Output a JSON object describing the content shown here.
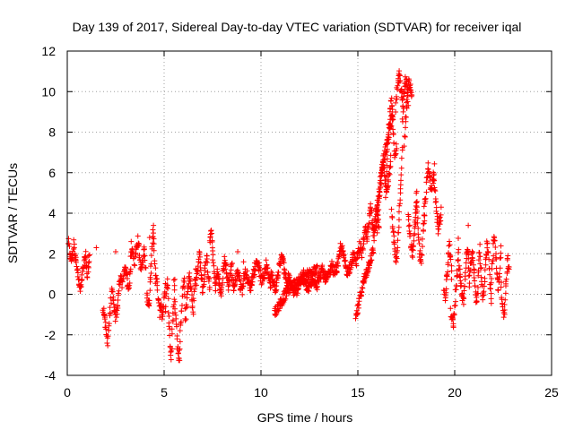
{
  "chart_data": {
    "type": "scatter",
    "title": "Day 139 of 2017, Sidereal Day-to-day VTEC variation (SDTVAR) for receiver iqal",
    "xlabel": "GPS time / hours",
    "ylabel": "SDTVAR / TECUs",
    "xlim": [
      0,
      25
    ],
    "ylim": [
      -4,
      12
    ],
    "xticks": [
      "0",
      "5",
      "10",
      "15",
      "20",
      "25"
    ],
    "yticks": [
      "-4",
      "-2",
      "0",
      "2",
      "4",
      "6",
      "8",
      "10",
      "12"
    ],
    "grid": true,
    "marker": "plus",
    "color": "#ff0000",
    "series": [
      {
        "name": "SDTVAR",
        "segments": [
          {
            "x0": 0.05,
            "x1": 0.45,
            "y": [
              2.6,
              2.2,
              1.8,
              1.7,
              2.0,
              2.5,
              2.1,
              1.6
            ]
          },
          {
            "x0": 0.45,
            "x1": 0.95,
            "y": [
              1.9,
              1.2,
              0.6,
              0.2,
              0.5,
              1.1,
              1.6,
              1.8
            ]
          },
          {
            "x0": 0.95,
            "x1": 1.15,
            "y": [
              1.9,
              1.3,
              0.8,
              1.5,
              2.0
            ]
          },
          {
            "x0": 1.85,
            "x1": 2.25,
            "y": [
              -0.6,
              -1.0,
              -1.5,
              -2.0,
              -2.3,
              -1.7,
              -1.0,
              -0.2
            ]
          },
          {
            "x0": 2.3,
            "x1": 2.85,
            "y": [
              0.2,
              -0.5,
              -1.2,
              -0.8,
              0.3,
              0.9,
              0.4
            ]
          },
          {
            "x0": 2.9,
            "x1": 3.45,
            "y": [
              0.8,
              1.4,
              0.9,
              0.3,
              0.6,
              1.9,
              2.4,
              1.5
            ]
          },
          {
            "x0": 3.5,
            "x1": 4.05,
            "y": [
              1.6,
              2.4,
              2.7,
              1.8,
              1.2,
              1.6,
              2.3,
              1.4
            ]
          },
          {
            "x0": 4.1,
            "x1": 4.55,
            "y": [
              0.2,
              -0.6,
              -0.3,
              0.9,
              2.0,
              3.3,
              2.2,
              0.7
            ]
          },
          {
            "x0": 4.55,
            "x1": 5.05,
            "y": [
              1.3,
              0.6,
              -0.2,
              -0.9,
              -0.4,
              -1.1,
              -0.6,
              0.3
            ]
          },
          {
            "x0": 5.05,
            "x1": 5.55,
            "y": [
              -0.6,
              0.2,
              0.6,
              -1.2,
              -2.3,
              -3.2,
              -1.7,
              -0.4,
              0.5
            ]
          },
          {
            "x0": 5.55,
            "x1": 6.1,
            "y": [
              -0.3,
              -1.3,
              -2.6,
              -3.5,
              -2.2,
              -1.0,
              0.2,
              0.8,
              -0.6
            ]
          },
          {
            "x0": 6.1,
            "x1": 6.65,
            "y": [
              -1.4,
              -0.3,
              0.7,
              1.0,
              0.1,
              -0.9,
              0.4,
              1.2
            ]
          },
          {
            "x0": 6.65,
            "x1": 7.35,
            "y": [
              0.5,
              1.4,
              2.0,
              1.0,
              0.2,
              0.9,
              1.8,
              1.1,
              0.3
            ]
          },
          {
            "x0": 7.35,
            "x1": 7.65,
            "y": [
              2.6,
              3.0,
              1.5,
              0.2
            ]
          },
          {
            "x0": 7.65,
            "x1": 8.5,
            "y": [
              0.4,
              1.1,
              0.6,
              -0.1,
              0.9,
              1.7,
              1.2,
              0.4,
              1.0,
              1.6
            ]
          },
          {
            "x0": 8.5,
            "x1": 9.45,
            "y": [
              0.9,
              0.3,
              0.8,
              1.2,
              0.5,
              0.2,
              0.9,
              1.1,
              0.6,
              0.4
            ]
          },
          {
            "x0": 9.45,
            "x1": 10.5,
            "y": [
              0.3,
              0.8,
              1.3,
              1.7,
              1.2,
              0.6,
              0.9,
              1.5,
              1.0,
              0.5
            ]
          },
          {
            "x0": 10.5,
            "x1": 11.45,
            "y": [
              1.1,
              0.6,
              0.2,
              0.8,
              1.6,
              1.9,
              1.2,
              0.6,
              1.0
            ]
          },
          {
            "x0": 10.7,
            "x1": 12.9,
            "y": [
              -0.9,
              -0.6,
              -0.2,
              0.2,
              0.4,
              0.5,
              0.7,
              0.8,
              1.0,
              1.1,
              1.2
            ]
          },
          {
            "x0": 11.45,
            "x1": 12.9,
            "y": [
              0.7,
              0.3,
              0.0,
              0.4,
              0.9,
              0.6,
              0.2,
              0.5,
              0.8,
              0.4
            ]
          },
          {
            "x0": 12.9,
            "x1": 13.9,
            "y": [
              0.6,
              0.9,
              1.2,
              0.9,
              0.7,
              1.0,
              1.4,
              1.1,
              1.3
            ]
          },
          {
            "x0": 13.9,
            "x1": 14.8,
            "y": [
              1.2,
              1.6,
              2.4,
              2.0,
              1.5,
              1.1,
              1.3,
              1.7,
              1.9
            ]
          },
          {
            "x0": 14.8,
            "x1": 15.5,
            "y": [
              1.8,
              1.5,
              2.0,
              2.4,
              1.9,
              2.7,
              3.2,
              2.6
            ]
          },
          {
            "x0": 14.9,
            "x1": 15.8,
            "y": [
              -1.2,
              -0.6,
              0.1,
              0.6,
              1.0,
              1.4,
              1.8,
              2.2
            ]
          },
          {
            "x0": 15.5,
            "x1": 16.1,
            "y": [
              3.0,
              3.8,
              4.4,
              3.4,
              2.8,
              3.5,
              4.0,
              3.2
            ]
          },
          {
            "x0": 15.8,
            "x1": 16.8,
            "y": [
              3.0,
              3.8,
              4.6,
              5.4,
              6.2,
              6.8,
              7.2,
              7.8,
              8.4,
              9.0
            ]
          },
          {
            "x0": 16.0,
            "x1": 16.7,
            "y": [
              3.2,
              4.5,
              5.8,
              6.6,
              5.6,
              5.0,
              5.9,
              6.8
            ]
          },
          {
            "x0": 16.45,
            "x1": 17.0,
            "y": [
              5.0,
              7.2,
              8.6,
              9.6,
              8.2,
              6.6,
              7.4
            ]
          },
          {
            "x0": 16.75,
            "x1": 17.3,
            "y": [
              4.0,
              3.2,
              2.2,
              1.6,
              2.6,
              4.2,
              5.6,
              7.2
            ]
          },
          {
            "x0": 16.95,
            "x1": 17.35,
            "y": [
              9.2,
              10.3,
              10.8,
              10.0,
              9.4
            ]
          },
          {
            "x0": 17.3,
            "x1": 17.6,
            "y": [
              8.6,
              9.8,
              10.3,
              10.6,
              10.3,
              9.5
            ]
          },
          {
            "x0": 17.4,
            "x1": 17.8,
            "y": [
              7.4,
              8.8,
              9.8,
              10.4,
              10.2,
              9.6
            ]
          },
          {
            "x0": 17.6,
            "x1": 18.05,
            "y": [
              4.0,
              3.2,
              2.4,
              2.0,
              2.6,
              3.8,
              5.2
            ]
          },
          {
            "x0": 17.95,
            "x1": 18.45,
            "y": [
              3.2,
              4.6,
              4.0,
              2.6,
              2.0,
              1.4,
              2.2,
              3.4,
              4.5
            ]
          },
          {
            "x0": 18.4,
            "x1": 18.95,
            "y": [
              3.2,
              4.4,
              5.6,
              6.4,
              5.8,
              5.0,
              5.6,
              6.2
            ]
          },
          {
            "x0": 18.9,
            "x1": 19.3,
            "y": [
              5.6,
              5.2,
              4.0,
              3.2,
              3.6,
              3.8
            ]
          },
          {
            "x0": 19.45,
            "x1": 19.85,
            "y": [
              0.3,
              -0.3,
              0.8,
              1.4,
              2.4,
              1.8,
              0.9
            ]
          },
          {
            "x0": 19.8,
            "x1": 20.2,
            "y": [
              -0.8,
              -1.2,
              -1.6,
              -0.6,
              0.4,
              1.2,
              2.6
            ]
          },
          {
            "x0": 20.2,
            "x1": 20.75,
            "y": [
              1.5,
              0.8,
              0.2,
              -0.4,
              0.6,
              1.8,
              2.2,
              1.0
            ]
          },
          {
            "x0": 20.75,
            "x1": 21.3,
            "y": [
              0.4,
              1.4,
              2.0,
              1.2,
              0.2,
              -0.4,
              0.8,
              2.4
            ]
          },
          {
            "x0": 21.3,
            "x1": 21.9,
            "y": [
              2.0,
              0.8,
              -0.2,
              0.4,
              1.6,
              2.6,
              1.8,
              0.5,
              -0.4
            ]
          },
          {
            "x0": 21.9,
            "x1": 22.4,
            "y": [
              0.6,
              1.8,
              3.0,
              2.2,
              1.0,
              0.2,
              1.2,
              2.4
            ]
          },
          {
            "x0": 22.4,
            "x1": 22.8,
            "y": [
              0.6,
              -0.6,
              -1.2,
              -0.2,
              0.9,
              1.8,
              1.2
            ]
          }
        ],
        "points": [
          [
            1.5,
            2.3
          ],
          [
            2.5,
            2.1
          ],
          [
            3.3,
            2.6
          ],
          [
            4.25,
            2.8
          ],
          [
            4.45,
            3.4
          ],
          [
            8.8,
            2.1
          ],
          [
            9.1,
            1.6
          ],
          [
            20.7,
            3.4
          ],
          [
            19.3,
            4.3
          ],
          [
            5.5,
            0.7
          ],
          [
            12.2,
            1.2
          ]
        ]
      }
    ]
  }
}
